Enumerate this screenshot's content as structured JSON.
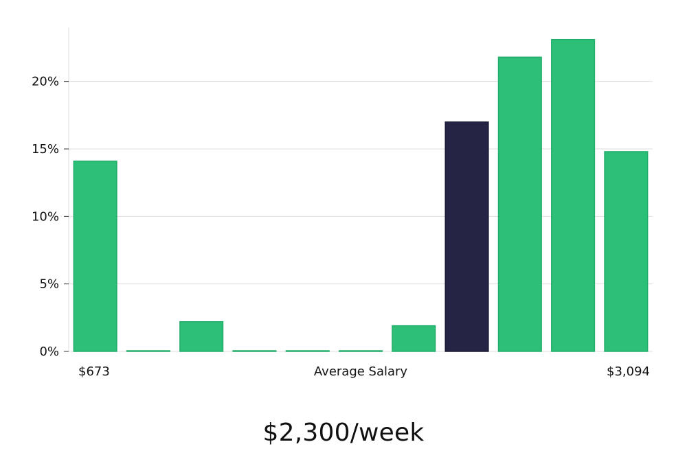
{
  "headline": "$2,300/week",
  "chart_data": {
    "type": "bar",
    "xlabel": "Average Salary",
    "x_range_labels": {
      "min": "$673",
      "max": "$3,094"
    },
    "ylim": [
      0,
      24
    ],
    "yticks": [
      {
        "value": 0,
        "label": "0%"
      },
      {
        "value": 5,
        "label": "5%"
      },
      {
        "value": 10,
        "label": "10%"
      },
      {
        "value": 15,
        "label": "15%"
      },
      {
        "value": 20,
        "label": "20%"
      }
    ],
    "grid": true,
    "values": [
      14.1,
      0.05,
      2.2,
      0.05,
      0.05,
      0.05,
      1.9,
      17.0,
      21.8,
      23.1,
      14.8
    ],
    "highlight_index": 7,
    "colors": {
      "bar": "#2dbf77",
      "bar_edge": "#22ad6a",
      "highlight": "#262445",
      "highlight_edge": "#1b1a33",
      "grid": "#dddddd",
      "axis": "#dddddd"
    }
  }
}
